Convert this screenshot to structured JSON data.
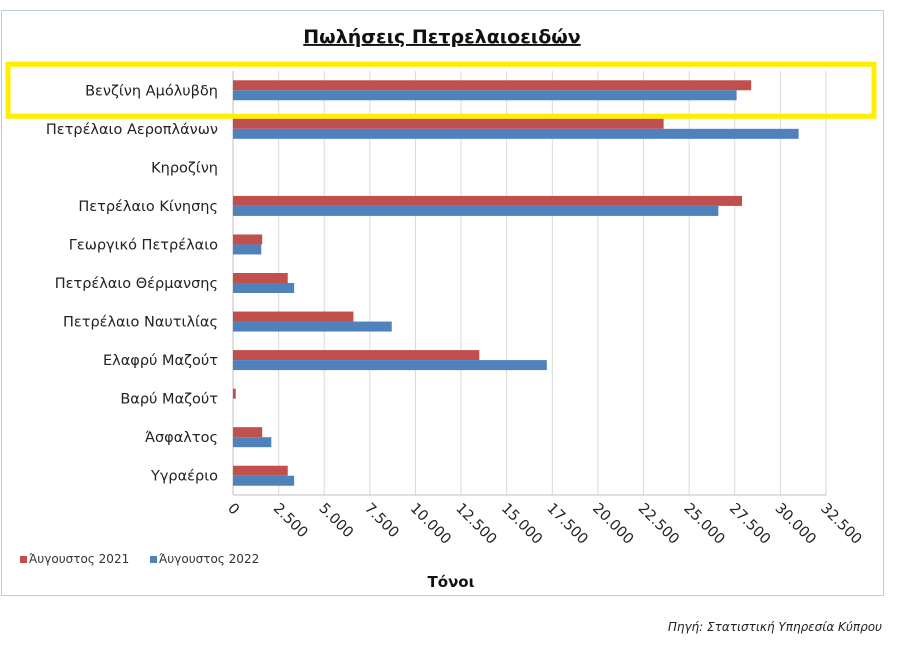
{
  "colors": {
    "series_2021": "#c0504d",
    "series_2022": "#4f81bd",
    "highlight": "#ffee00",
    "grid": "#d9d9d9"
  },
  "source_note": "Πηγή: Στατιστική Υπηρεσία Κύπρου",
  "chart_data": {
    "type": "bar",
    "orientation": "horizontal",
    "title": "Πωλήσεις Πετρελαιοειδών",
    "xlabel": "Τόνοι",
    "ylabel": "",
    "xlim": [
      0,
      32500
    ],
    "x_ticks": [
      0,
      2500,
      5000,
      7500,
      10000,
      12500,
      15000,
      17500,
      20000,
      22500,
      25000,
      27500,
      30000,
      32500
    ],
    "x_tick_labels": [
      "0",
      "2.500",
      "5.000",
      "7.500",
      "10.000",
      "12.500",
      "15.000",
      "17.500",
      "20.000",
      "22.500",
      "25.000",
      "27.500",
      "30.000",
      "32.500"
    ],
    "grid": "vertical",
    "legend_position": "bottom-left",
    "highlighted_category": "Βενζίνη Αμόλυβδη",
    "categories": [
      "Βενζίνη Αμόλυβδη",
      "Πετρέλαιο Αεροπλάνων",
      "Κηροζίνη",
      "Πετρέλαιο Κίνησης",
      "Γεωργικό Πετρέλαιο",
      "Πετρέλαιο Θέρμανσης",
      "Πετρέλαιο Ναυτιλίας",
      "Ελαφρύ Μαζούτ",
      "Βαρύ Μαζούτ",
      "Άσφαλτος",
      "Υγραέριο"
    ],
    "series": [
      {
        "name": "Άυγουστος 2021",
        "values": [
          28400,
          23600,
          0,
          27900,
          1600,
          3000,
          6600,
          13500,
          150,
          1600,
          3000
        ]
      },
      {
        "name": "Άυγουστος 2022",
        "values": [
          27600,
          31000,
          0,
          26600,
          1550,
          3350,
          8700,
          17200,
          0,
          2100,
          3350
        ]
      }
    ]
  }
}
